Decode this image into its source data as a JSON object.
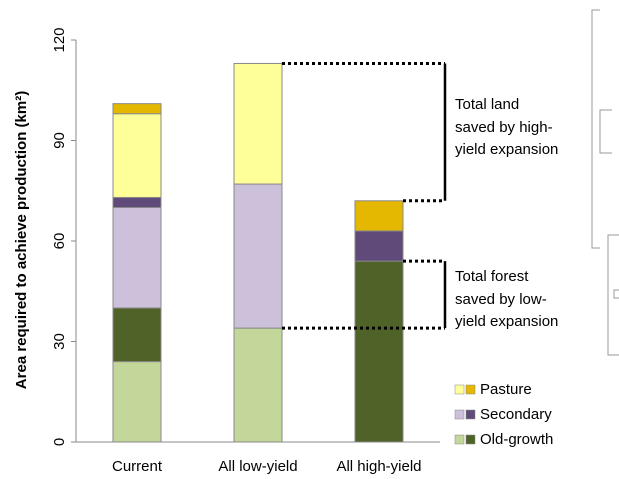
{
  "chart_data": {
    "type": "stacked-bar",
    "y_label": "Area required to achieve production (km²)",
    "categories": [
      "Current",
      "All low-yield",
      "All high-yield"
    ],
    "series": [
      {
        "name": "Old-growth",
        "colors": [
          "#c4d79b",
          "#4f6228"
        ],
        "values": [
          [
            24,
            16
          ],
          [
            34,
            0
          ],
          [
            0,
            54
          ]
        ]
      },
      {
        "name": "Secondary",
        "colors": [
          "#ccc0da",
          "#604a7a"
        ],
        "values": [
          [
            30,
            3
          ],
          [
            43,
            0
          ],
          [
            0,
            9
          ]
        ]
      },
      {
        "name": "Pasture",
        "colors": [
          "#ffff99",
          "#e4b800"
        ],
        "values": [
          [
            25,
            3
          ],
          [
            36,
            0
          ],
          [
            0,
            9
          ]
        ]
      }
    ],
    "ylim": [
      0,
      120
    ],
    "yticks": [
      0,
      30,
      60,
      90,
      120
    ],
    "annotations": [
      {
        "lines": [
          "Total land",
          "saved by high-",
          "yield expansion"
        ]
      },
      {
        "lines": [
          "Total forest",
          "saved by low-",
          "yield expansion"
        ]
      }
    ]
  }
}
